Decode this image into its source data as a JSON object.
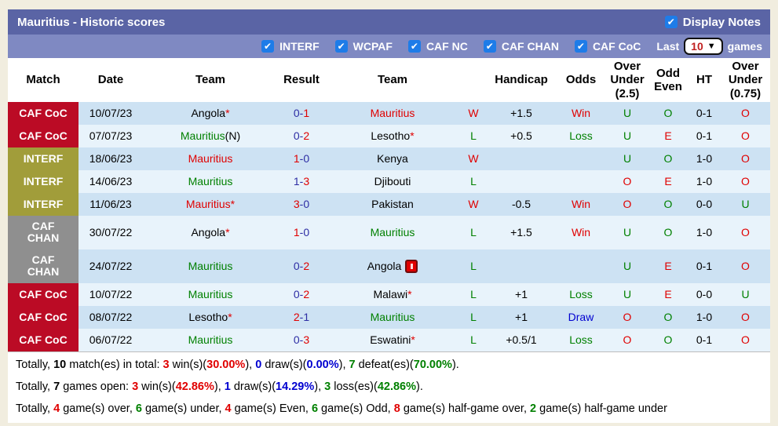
{
  "title_bar": {
    "title": "Mauritius - Historic scores",
    "display_notes_label": "Display Notes"
  },
  "filter_bar": {
    "filters": [
      "INTERF",
      "WCPAF",
      "CAF NC",
      "CAF CHAN",
      "CAF CoC"
    ],
    "last_label": "Last",
    "games_count": "10",
    "games_label": "games"
  },
  "colors": {
    "title_bar": "#5a64a5",
    "filter_bar": "#7f89c2",
    "checkbox_blue": "#1e7ce8",
    "badge_caf_coc": "#bb0b25",
    "badge_interf": "#a19d3a",
    "badge_caf_chan": "#8f8f8f",
    "row_dark": "#cde2f3",
    "row_light": "#e8f3fb",
    "win_red": "#e00000",
    "loss_green": "#008000",
    "draw_blue": "#0000d0",
    "score_navy": "#2d2da4"
  },
  "table": {
    "headers": [
      "Match",
      "Date",
      "Team",
      "Result",
      "Team",
      "",
      "Handicap",
      "Odds",
      "Over Under (2.5)",
      "Odd Even",
      "HT",
      "Over Under (0.75)"
    ],
    "rows": [
      {
        "comp": "CAF CoC",
        "comp_class": "coc",
        "tall": false,
        "date": "10/07/23",
        "t1": [
          {
            "t": "Angola",
            "c": "k"
          },
          {
            "t": "*",
            "c": "r"
          }
        ],
        "res": [
          {
            "t": "0-",
            "c": "n"
          },
          {
            "t": "1",
            "c": "r"
          }
        ],
        "t2": [
          {
            "t": "Mauritius",
            "c": "r"
          }
        ],
        "wl": [
          {
            "t": "W",
            "c": "r"
          }
        ],
        "hcp": "+1.5",
        "odds": [
          {
            "t": "Win",
            "c": "r"
          }
        ],
        "ou25": [
          {
            "t": "U",
            "c": "g"
          }
        ],
        "oe": [
          {
            "t": "O",
            "c": "g"
          }
        ],
        "ht": "0-1",
        "ou075": [
          {
            "t": "O",
            "c": "r"
          }
        ]
      },
      {
        "comp": "CAF CoC",
        "comp_class": "coc",
        "tall": false,
        "date": "07/07/23",
        "t1": [
          {
            "t": "Mauritius",
            "c": "g"
          },
          {
            "t": "(N)",
            "c": "k"
          }
        ],
        "res": [
          {
            "t": "0-",
            "c": "n"
          },
          {
            "t": "2",
            "c": "r"
          }
        ],
        "t2": [
          {
            "t": "Lesotho",
            "c": "k"
          },
          {
            "t": "*",
            "c": "r"
          }
        ],
        "wl": [
          {
            "t": "L",
            "c": "g"
          }
        ],
        "hcp": "+0.5",
        "odds": [
          {
            "t": "Loss",
            "c": "g"
          }
        ],
        "ou25": [
          {
            "t": "U",
            "c": "g"
          }
        ],
        "oe": [
          {
            "t": "E",
            "c": "r"
          }
        ],
        "ht": "0-1",
        "ou075": [
          {
            "t": "O",
            "c": "r"
          }
        ]
      },
      {
        "comp": "INTERF",
        "comp_class": "interf",
        "tall": false,
        "date": "18/06/23",
        "t1": [
          {
            "t": "Mauritius",
            "c": "r"
          }
        ],
        "res": [
          {
            "t": "1",
            "c": "r"
          },
          {
            "t": "-0",
            "c": "n"
          }
        ],
        "t2": [
          {
            "t": "Kenya",
            "c": "k"
          }
        ],
        "wl": [
          {
            "t": "W",
            "c": "r"
          }
        ],
        "hcp": "",
        "odds": [],
        "ou25": [
          {
            "t": "U",
            "c": "g"
          }
        ],
        "oe": [
          {
            "t": "O",
            "c": "g"
          }
        ],
        "ht": "1-0",
        "ou075": [
          {
            "t": "O",
            "c": "r"
          }
        ]
      },
      {
        "comp": "INTERF",
        "comp_class": "interf",
        "tall": false,
        "date": "14/06/23",
        "t1": [
          {
            "t": "Mauritius",
            "c": "g"
          }
        ],
        "res": [
          {
            "t": "1-",
            "c": "n"
          },
          {
            "t": "3",
            "c": "r"
          }
        ],
        "t2": [
          {
            "t": "Djibouti",
            "c": "k"
          }
        ],
        "wl": [
          {
            "t": "L",
            "c": "g"
          }
        ],
        "hcp": "",
        "odds": [],
        "ou25": [
          {
            "t": "O",
            "c": "r"
          }
        ],
        "oe": [
          {
            "t": "E",
            "c": "r"
          }
        ],
        "ht": "1-0",
        "ou075": [
          {
            "t": "O",
            "c": "r"
          }
        ]
      },
      {
        "comp": "INTERF",
        "comp_class": "interf",
        "tall": false,
        "date": "11/06/23",
        "t1": [
          {
            "t": "Mauritius",
            "c": "r"
          },
          {
            "t": "*",
            "c": "r"
          }
        ],
        "res": [
          {
            "t": "3",
            "c": "r"
          },
          {
            "t": "-0",
            "c": "n"
          }
        ],
        "t2": [
          {
            "t": "Pakistan",
            "c": "k"
          }
        ],
        "wl": [
          {
            "t": "W",
            "c": "r"
          }
        ],
        "hcp": "-0.5",
        "odds": [
          {
            "t": "Win",
            "c": "r"
          }
        ],
        "ou25": [
          {
            "t": "O",
            "c": "r"
          }
        ],
        "oe": [
          {
            "t": "O",
            "c": "g"
          }
        ],
        "ht": "0-0",
        "ou075": [
          {
            "t": "U",
            "c": "g"
          }
        ]
      },
      {
        "comp": "CAF\nCHAN",
        "comp_class": "chan",
        "tall": true,
        "date": "30/07/22",
        "t1": [
          {
            "t": "Angola",
            "c": "k"
          },
          {
            "t": "*",
            "c": "r"
          }
        ],
        "res": [
          {
            "t": "1",
            "c": "r"
          },
          {
            "t": "-0",
            "c": "n"
          }
        ],
        "t2": [
          {
            "t": "Mauritius",
            "c": "g"
          }
        ],
        "wl": [
          {
            "t": "L",
            "c": "g"
          }
        ],
        "hcp": "+1.5",
        "odds": [
          {
            "t": "Win",
            "c": "r"
          }
        ],
        "ou25": [
          {
            "t": "U",
            "c": "g"
          }
        ],
        "oe": [
          {
            "t": "O",
            "c": "g"
          }
        ],
        "ht": "1-0",
        "ou075": [
          {
            "t": "O",
            "c": "r"
          }
        ]
      },
      {
        "comp": "CAF\nCHAN",
        "comp_class": "chan",
        "tall": true,
        "date": "24/07/22",
        "t1": [
          {
            "t": "Mauritius",
            "c": "g"
          }
        ],
        "res": [
          {
            "t": "0-",
            "c": "n"
          },
          {
            "t": "2",
            "c": "r"
          }
        ],
        "t2": [
          {
            "t": "Angola",
            "c": "k"
          },
          {
            "icon": "red-card"
          }
        ],
        "wl": [
          {
            "t": "L",
            "c": "g"
          }
        ],
        "hcp": "",
        "odds": [],
        "ou25": [
          {
            "t": "U",
            "c": "g"
          }
        ],
        "oe": [
          {
            "t": "E",
            "c": "r"
          }
        ],
        "ht": "0-1",
        "ou075": [
          {
            "t": "O",
            "c": "r"
          }
        ]
      },
      {
        "comp": "CAF CoC",
        "comp_class": "coc",
        "tall": false,
        "date": "10/07/22",
        "t1": [
          {
            "t": "Mauritius",
            "c": "g"
          }
        ],
        "res": [
          {
            "t": "0-",
            "c": "n"
          },
          {
            "t": "2",
            "c": "r"
          }
        ],
        "t2": [
          {
            "t": "Malawi",
            "c": "k"
          },
          {
            "t": "*",
            "c": "r"
          }
        ],
        "wl": [
          {
            "t": "L",
            "c": "g"
          }
        ],
        "hcp": "+1",
        "odds": [
          {
            "t": "Loss",
            "c": "g"
          }
        ],
        "ou25": [
          {
            "t": "U",
            "c": "g"
          }
        ],
        "oe": [
          {
            "t": "E",
            "c": "r"
          }
        ],
        "ht": "0-0",
        "ou075": [
          {
            "t": "U",
            "c": "g"
          }
        ]
      },
      {
        "comp": "CAF CoC",
        "comp_class": "coc",
        "tall": false,
        "date": "08/07/22",
        "t1": [
          {
            "t": "Lesotho",
            "c": "k"
          },
          {
            "t": "*",
            "c": "r"
          }
        ],
        "res": [
          {
            "t": "2",
            "c": "r"
          },
          {
            "t": "-1",
            "c": "n"
          }
        ],
        "t2": [
          {
            "t": "Mauritius",
            "c": "g"
          }
        ],
        "wl": [
          {
            "t": "L",
            "c": "g"
          }
        ],
        "hcp": "+1",
        "odds": [
          {
            "t": "Draw",
            "c": "b"
          }
        ],
        "ou25": [
          {
            "t": "O",
            "c": "r"
          }
        ],
        "oe": [
          {
            "t": "O",
            "c": "g"
          }
        ],
        "ht": "1-0",
        "ou075": [
          {
            "t": "O",
            "c": "r"
          }
        ]
      },
      {
        "comp": "CAF CoC",
        "comp_class": "coc",
        "tall": false,
        "date": "06/07/22",
        "t1": [
          {
            "t": "Mauritius",
            "c": "g"
          }
        ],
        "res": [
          {
            "t": "0-",
            "c": "n"
          },
          {
            "t": "3",
            "c": "r"
          }
        ],
        "t2": [
          {
            "t": "Eswatini",
            "c": "k"
          },
          {
            "t": "*",
            "c": "r"
          }
        ],
        "wl": [
          {
            "t": "L",
            "c": "g"
          }
        ],
        "hcp": "+0.5/1",
        "odds": [
          {
            "t": "Loss",
            "c": "g"
          }
        ],
        "ou25": [
          {
            "t": "O",
            "c": "r"
          }
        ],
        "oe": [
          {
            "t": "O",
            "c": "g"
          }
        ],
        "ht": "0-1",
        "ou075": [
          {
            "t": "O",
            "c": "r"
          }
        ]
      }
    ]
  },
  "footer": {
    "lines": [
      [
        {
          "t": "Totally, "
        },
        {
          "t": "10",
          "b": 1
        },
        {
          "t": " match(es) in total: "
        },
        {
          "t": "3",
          "c": "r",
          "b": 1
        },
        {
          "t": " win(s)("
        },
        {
          "t": "30.00%",
          "c": "r",
          "b": 1
        },
        {
          "t": "), "
        },
        {
          "t": "0",
          "c": "b",
          "b": 1
        },
        {
          "t": " draw(s)("
        },
        {
          "t": "0.00%",
          "c": "b",
          "b": 1
        },
        {
          "t": "), "
        },
        {
          "t": "7",
          "c": "g",
          "b": 1
        },
        {
          "t": " defeat(es)("
        },
        {
          "t": "70.00%",
          "c": "g",
          "b": 1
        },
        {
          "t": ")."
        }
      ],
      [
        {
          "t": "Totally, "
        },
        {
          "t": "7",
          "b": 1
        },
        {
          "t": " games open: "
        },
        {
          "t": "3",
          "c": "r",
          "b": 1
        },
        {
          "t": " win(s)("
        },
        {
          "t": "42.86%",
          "c": "r",
          "b": 1
        },
        {
          "t": "), "
        },
        {
          "t": "1",
          "c": "b",
          "b": 1
        },
        {
          "t": " draw(s)("
        },
        {
          "t": "14.29%",
          "c": "b",
          "b": 1
        },
        {
          "t": "), "
        },
        {
          "t": "3",
          "c": "g",
          "b": 1
        },
        {
          "t": " loss(es)("
        },
        {
          "t": "42.86%",
          "c": "g",
          "b": 1
        },
        {
          "t": ")."
        }
      ],
      [
        {
          "t": "Totally, "
        },
        {
          "t": "4",
          "c": "r",
          "b": 1
        },
        {
          "t": " game(s) over, "
        },
        {
          "t": "6",
          "c": "g",
          "b": 1
        },
        {
          "t": " game(s) under, "
        },
        {
          "t": "4",
          "c": "r",
          "b": 1
        },
        {
          "t": " game(s) Even, "
        },
        {
          "t": "6",
          "c": "g",
          "b": 1
        },
        {
          "t": " game(s) Odd, "
        },
        {
          "t": "8",
          "c": "r",
          "b": 1
        },
        {
          "t": " game(s) half-game over, "
        },
        {
          "t": "2",
          "c": "g",
          "b": 1
        },
        {
          "t": " game(s) half-game under"
        }
      ]
    ]
  }
}
